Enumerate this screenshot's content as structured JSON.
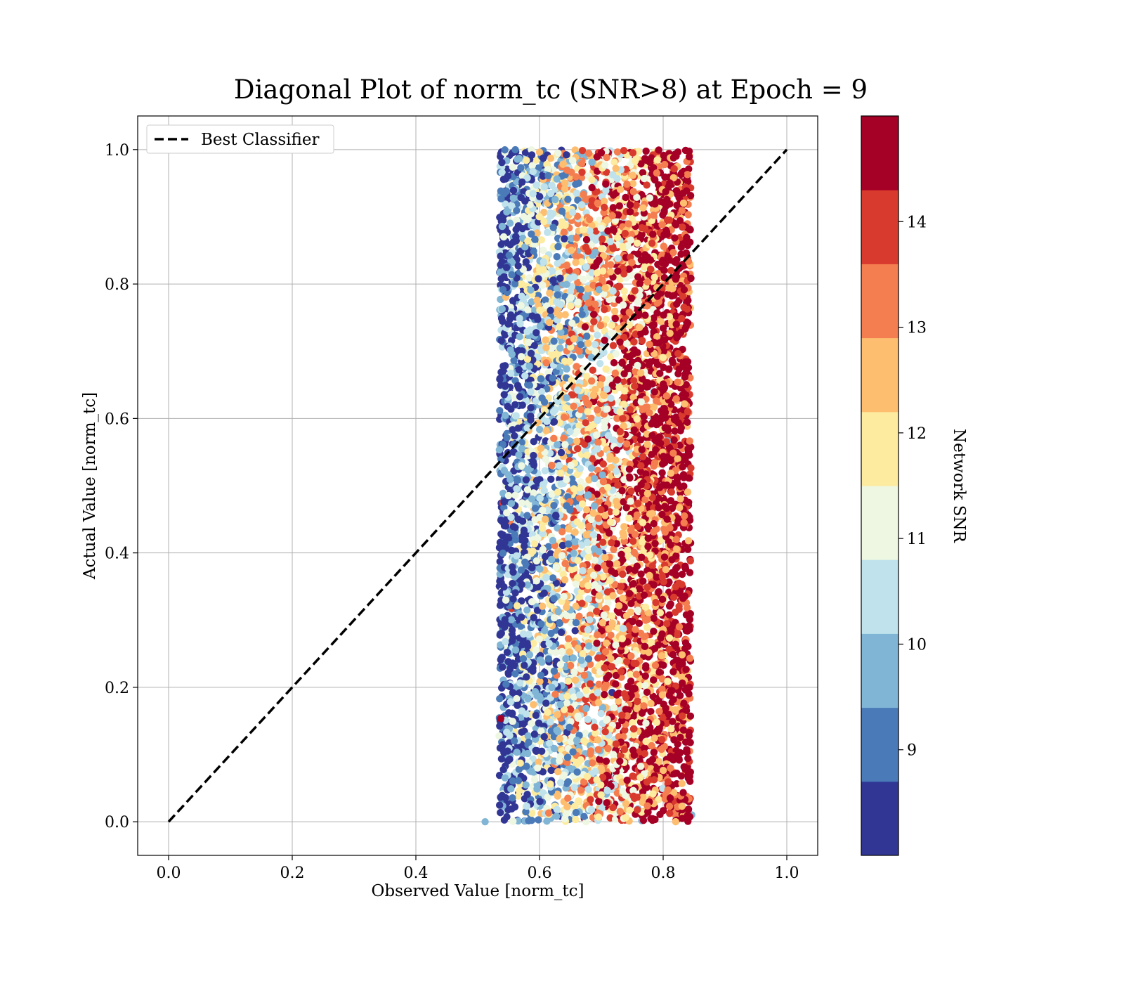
{
  "chart_data": {
    "type": "scatter",
    "title": "Diagonal Plot of norm_tc (SNR>8) at Epoch = 9",
    "xlabel": "Observed Value [norm_tc]",
    "ylabel": "Actual Value [norm_tc]",
    "xlim": [
      -0.05,
      1.05
    ],
    "ylim": [
      -0.05,
      1.05
    ],
    "xticks": [
      0.0,
      0.2,
      0.4,
      0.6,
      0.8,
      1.0
    ],
    "xtick_labels": [
      "0.0",
      "0.2",
      "0.4",
      "0.6",
      "0.8",
      "1.0"
    ],
    "yticks": [
      0.0,
      0.2,
      0.4,
      0.6,
      0.8,
      1.0
    ],
    "ytick_labels": [
      "0.0",
      "0.2",
      "0.4",
      "0.6",
      "0.8",
      "1.0"
    ],
    "grid": true,
    "legend": {
      "location": "top-left",
      "entries": [
        {
          "label": "Best Classifier",
          "style": "dashed",
          "color": "#000000"
        }
      ]
    },
    "reference_line": {
      "name": "Best Classifier",
      "x": [
        0.0,
        1.0
      ],
      "y": [
        0.0,
        1.0
      ]
    },
    "scatter_cloud": {
      "x_range": [
        0.51,
        0.86
      ],
      "y_range": [
        0.0,
        1.0
      ],
      "color_by": "Network SNR",
      "description_of_trend": "higher SNR concentrates at larger observed values"
    },
    "colorbar": {
      "label": "Network SNR",
      "vmin": 8.0,
      "vmax": 15.0,
      "ticks": [
        9,
        10,
        11,
        12,
        13,
        14
      ],
      "tick_labels": [
        "9",
        "10",
        "11",
        "12",
        "13",
        "14"
      ],
      "colors": [
        "#313695",
        "#4a7ab7",
        "#81b5d6",
        "#bfe2ec",
        "#eef7e1",
        "#fdeba0",
        "#fdbe70",
        "#f47e4f",
        "#d93a2e",
        "#a50026"
      ]
    }
  }
}
